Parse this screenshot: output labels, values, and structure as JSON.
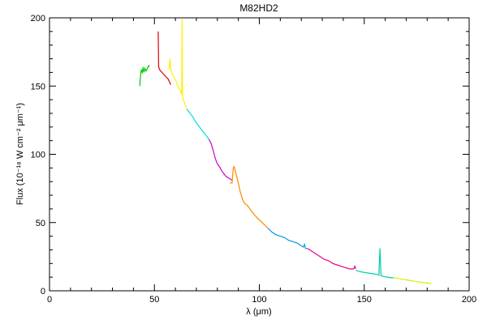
{
  "chart_data": {
    "type": "line",
    "title": "M82HD2",
    "xlabel": "λ (μm)",
    "ylabel": "Flux (10⁻¹⁸ W cm⁻² μm⁻¹)",
    "xlim": [
      0,
      200
    ],
    "ylim": [
      0,
      200
    ],
    "x_ticks": [
      0,
      50,
      100,
      150,
      200
    ],
    "y_ticks": [
      0,
      50,
      100,
      150,
      200
    ],
    "x_tick_labels": [
      "0",
      "50",
      "100",
      "150",
      "200"
    ],
    "y_tick_labels": [
      "0",
      "50",
      "100",
      "150",
      "200"
    ],
    "grid": false,
    "series": [
      {
        "color": "#00cc00",
        "x": [
          43.0,
          43.3,
          43.7,
          44.2,
          44.6,
          45.0,
          45.5,
          46.0,
          46.4,
          46.9,
          47.3,
          47.6
        ],
        "y": [
          150,
          156,
          162,
          160,
          164,
          160,
          163,
          161,
          162,
          164,
          165,
          164
        ]
      },
      {
        "color": "#dd0000",
        "x": [
          51.8,
          52.0,
          52.2,
          52.5,
          53.0,
          53.6,
          54.2,
          54.8,
          55.4,
          56.0,
          56.6,
          57.2,
          57.8
        ],
        "y": [
          190,
          165,
          163,
          162,
          161,
          160,
          159,
          158,
          157,
          156,
          155,
          153,
          151
        ]
      },
      {
        "color": "#ffee00",
        "x": [
          57.0,
          57.4,
          57.8,
          58.3,
          58.8,
          59.5,
          60.2,
          61.0,
          61.8,
          62.5,
          63.0,
          63.2,
          63.4,
          63.6,
          64.0,
          64.8,
          65.5
        ],
        "y": [
          162,
          170,
          162,
          160,
          158,
          156,
          154,
          151,
          148,
          146,
          144,
          199,
          143,
          141,
          139,
          136,
          133
        ]
      },
      {
        "color": "#00dddd",
        "x": [
          65.5,
          66.5,
          67.5,
          68.5,
          69.5,
          70.5,
          71.5,
          72.5,
          73.5,
          74.5,
          75.5,
          76.0
        ],
        "y": [
          133,
          131,
          129,
          127,
          124,
          122,
          120,
          118,
          116,
          114,
          112,
          111
        ]
      },
      {
        "color": "#cc00cc",
        "x": [
          76.0,
          77.0,
          78.0,
          79.0,
          80.0,
          81.0,
          82.0,
          83.0,
          84.0,
          85.0,
          86.0,
          87.0
        ],
        "y": [
          111,
          108,
          103,
          97,
          93,
          91,
          88,
          86,
          84,
          83,
          82,
          81
        ]
      },
      {
        "color": "#ff8800",
        "x": [
          86.0,
          87.0,
          87.6,
          88.0,
          89.0,
          90.0,
          91.0,
          92.0,
          93.0,
          94.0,
          96.0,
          98.0,
          100.0,
          102.0,
          104.0
        ],
        "y": [
          79,
          79,
          90,
          91,
          85,
          79,
          72,
          67,
          64,
          63,
          59,
          55,
          52,
          49,
          46
        ]
      },
      {
        "color": "#0099dd",
        "x": [
          104.0,
          106.0,
          108.0,
          110.0,
          112.0,
          114.0,
          116.0,
          118.0,
          120.0,
          121.0,
          121.5,
          122.0,
          123.0
        ],
        "y": [
          46,
          43,
          41,
          40,
          39,
          37,
          36,
          35,
          33,
          32,
          34,
          31,
          31
        ]
      },
      {
        "color": "#ee0088",
        "x": [
          123.0,
          125.0,
          127.0,
          129.0,
          131.0,
          133.0,
          135.0,
          137.0,
          139.0,
          141.0,
          143.0,
          145.0,
          145.5,
          146.0
        ],
        "y": [
          31,
          29,
          27,
          25,
          23,
          22,
          20,
          19,
          18,
          17,
          16,
          16,
          18,
          16
        ]
      },
      {
        "color": "#00ccaa",
        "x": [
          146.0,
          148.0,
          150.0,
          152.0,
          154.0,
          156.0,
          157.0,
          157.5,
          158.0,
          158.5,
          159.0,
          161.0,
          163.0,
          164.0
        ],
        "y": [
          15,
          14,
          13.5,
          13,
          12.5,
          12,
          11.5,
          31,
          11,
          11,
          10.5,
          10,
          9.5,
          9.5
        ]
      },
      {
        "color": "#ddee00",
        "x": [
          164.0,
          166.0,
          168.0,
          170.0,
          172.0,
          174.0,
          176.0,
          178.0,
          180.0,
          182.0
        ],
        "y": [
          9.5,
          9,
          8.5,
          8,
          7.5,
          7,
          6.5,
          6,
          5.7,
          5.3
        ]
      }
    ]
  }
}
